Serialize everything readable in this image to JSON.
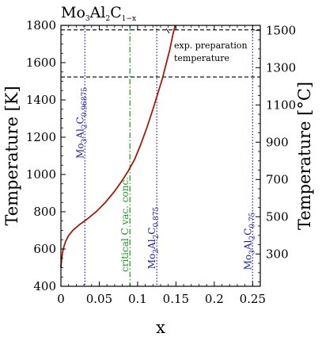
{
  "chart_data": {
    "type": "line",
    "title": {
      "base": "Mo",
      "s1": "3",
      "mid": "Al",
      "s2": "2",
      "tail": "C",
      "s3": "1−x"
    },
    "xlabel": "x",
    "ylabel_left": "Temperature [K]",
    "ylabel_right": "Temperature [°C]",
    "xlim": [
      0,
      0.26
    ],
    "ylim": [
      400,
      1800
    ],
    "x_ticks": [
      0,
      0.05,
      0.1,
      0.15,
      0.2,
      0.25
    ],
    "x_tick_labels": [
      "0",
      "0.05",
      "0.1",
      "0.15",
      "0.2",
      "0.25"
    ],
    "y_ticks": [
      400,
      600,
      800,
      1000,
      1200,
      1400,
      1600,
      1800
    ],
    "y_tick_labels": [
      "400",
      "600",
      "800",
      "1000",
      "1200",
      "1400",
      "1600",
      "1800"
    ],
    "y2_ticks_celsius": [
      300,
      500,
      700,
      900,
      1100,
      1300,
      1500
    ],
    "y2_tick_labels": [
      "300",
      "500",
      "700",
      "900",
      "1100",
      "1300",
      "1500"
    ],
    "series": [
      {
        "color": "#a01c0c",
        "x": [
          0.0,
          0.001,
          0.003,
          0.006,
          0.01,
          0.016,
          0.024,
          0.034,
          0.046,
          0.058,
          0.07,
          0.08,
          0.088,
          0.096,
          0.104,
          0.112,
          0.12,
          0.126,
          0.132,
          0.137,
          0.142,
          0.146,
          0.149
        ],
        "y": [
          500,
          550,
          600,
          640,
          672,
          702,
          730,
          760,
          800,
          850,
          910,
          968,
          1020,
          1080,
          1160,
          1250,
          1350,
          1430,
          1510,
          1590,
          1670,
          1750,
          1800
        ]
      }
    ],
    "hlines": [
      {
        "y": 1776,
        "style": "dashed",
        "color": "#000000"
      },
      {
        "y": 1523,
        "style": "dashed",
        "color": "#000000"
      }
    ],
    "vlines": [
      {
        "x": 0.03125,
        "style": "dotted",
        "color": "#1a1a9c",
        "label": {
          "base": "Mo",
          "s1": "3",
          "mid": "Al",
          "s2": "2",
          "tail": "C",
          "s3": "0.96875"
        }
      },
      {
        "x": 0.09,
        "style": "dashdot",
        "color": "#1a9c1a",
        "label_text": "critical C vac. conc."
      },
      {
        "x": 0.125,
        "style": "dotted",
        "color": "#1a1a9c",
        "label": {
          "base": "Mo",
          "s1": "3",
          "mid": "Al",
          "s2": "2",
          "tail": "C",
          "s3": "0.875"
        }
      },
      {
        "x": 0.25,
        "style": "dotted",
        "color": "#1a1a9c",
        "label": {
          "base": "Mo",
          "s1": "3",
          "mid": "Al",
          "s2": "2",
          "tail": "C",
          "s3": "0.75"
        }
      }
    ],
    "annotation": {
      "line1": "exp. preparation",
      "line2": "temperature"
    },
    "grid": false,
    "legend": "none"
  }
}
